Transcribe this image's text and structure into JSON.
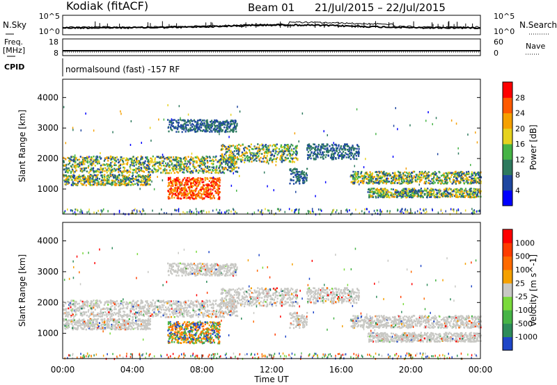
{
  "header": {
    "station": "Kodiak (fitACF)",
    "beam": "Beam 01",
    "dates": "21/Jul/2015 – 22/Jul/2015"
  },
  "top_panel": {
    "left_label": "N.Sky",
    "right_label": "N.Search",
    "left_ticks": [
      "10^5",
      "10^0"
    ],
    "right_ticks": [
      "10^5",
      "10^0"
    ]
  },
  "freq_panel": {
    "left_label_1": "Freq.",
    "left_label_2": "[MHz]",
    "right_label": "Nave",
    "left_ticks": [
      "18",
      "8"
    ],
    "right_ticks": [
      "60",
      "0"
    ]
  },
  "cpid_panel": {
    "left_label": "CPID",
    "text": "normalsound (fast) -157 RF"
  },
  "colors": {
    "frame": "#000000",
    "ground_scatter": "#c8c8c4"
  },
  "chart_data": [
    {
      "type": "heatmap",
      "panel": "power",
      "ylabel": "Slant Range [km]",
      "yticks": [
        "4000",
        "3000",
        "2000",
        "1000"
      ],
      "ylim": [
        180,
        4600
      ],
      "x_ticks": [
        "00:00",
        "04:00",
        "08:00",
        "12:00",
        "16:00",
        "20:00",
        "00:00"
      ],
      "xlim_hours": [
        0,
        24
      ],
      "colorbar": {
        "label": "Power [dB]",
        "ticks": [
          "28",
          "24",
          "20",
          "16",
          "12",
          "8",
          "4"
        ],
        "range": [
          0,
          32
        ],
        "colors": [
          "#0000ff",
          "#1e46a0",
          "#2e7a5e",
          "#46b446",
          "#e6d21e",
          "#f5a000",
          "#ff5a00",
          "#ff0000"
        ]
      }
    },
    {
      "type": "heatmap",
      "panel": "velocity",
      "ylabel": "Slant Range [km]",
      "yticks": [
        "4000",
        "3000",
        "2000",
        "1000"
      ],
      "ylim": [
        180,
        4600
      ],
      "x_ticks": [
        "00:00",
        "04:00",
        "08:00",
        "12:00",
        "16:00",
        "20:00",
        "00:00"
      ],
      "xlim_hours": [
        0,
        24
      ],
      "xlabel": "Time UT",
      "colorbar": {
        "label": "Velocity [m s^-1]",
        "ticks": [
          "1000",
          "500",
          "100",
          "25",
          "-25",
          "-100",
          "-500",
          "-1000"
        ],
        "colors": [
          "#1e46c8",
          "#2d8c5a",
          "#46b446",
          "#7ada3c",
          "#c8c8c4",
          "#f5a000",
          "#ff6a00",
          "#ff3c00",
          "#ff0000"
        ]
      }
    }
  ]
}
